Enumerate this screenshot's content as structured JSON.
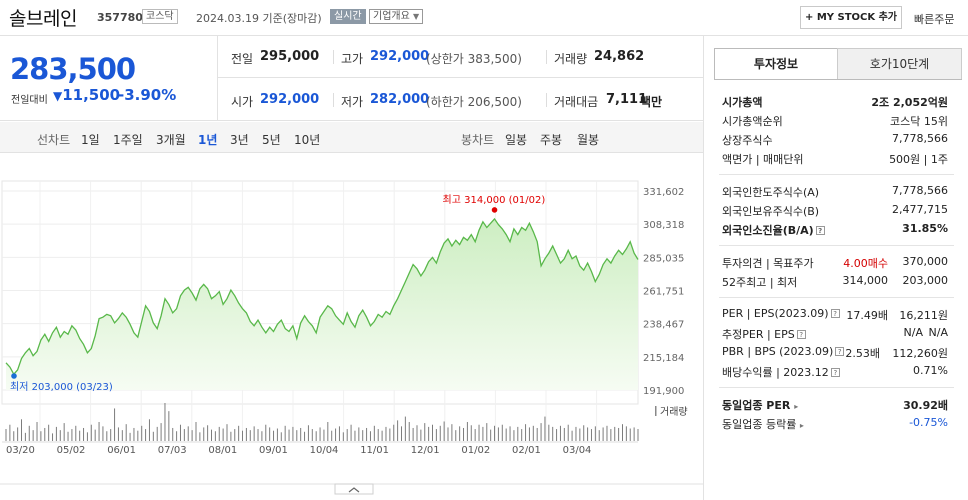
{
  "header": {
    "name": "솔브레인",
    "code": "357780",
    "market": "코스닥",
    "date": "2024.03.19  기준(장마감)",
    "realtime": "실시간",
    "company_info": "기업개요",
    "my_stock": "+ MY STOCK 추가",
    "quick_order": "빠른주문"
  },
  "price": {
    "current": "283,500",
    "vs_label": "전일대비",
    "change": "11,500",
    "change_pct": "-3.90%",
    "direction": "down"
  },
  "quotes": {
    "prev_label": "전일",
    "prev": "295,000",
    "high_label": "고가",
    "high": "292,000",
    "upper_limit": "(상한가 383,500)",
    "volume_label": "거래량",
    "volume": "24,862",
    "open_label": "시가",
    "open": "292,000",
    "low_label": "저가",
    "low": "282,000",
    "lower_limit": "(하한가 206,500)",
    "amount_label": "거래대금",
    "amount": "7,111",
    "amount_unit": "백만"
  },
  "chart_controls": {
    "line_label": "선차트",
    "line_periods": [
      "1일",
      "1주일",
      "3개월",
      "1년",
      "3년",
      "5년",
      "10년"
    ],
    "active": "1년",
    "candle_label": "봉차트",
    "candle_periods": [
      "일봉",
      "주봉",
      "월봉"
    ]
  },
  "chart_data": {
    "type": "line",
    "y_ticks": [
      "331,602",
      "308,318",
      "285,035",
      "261,751",
      "238,467",
      "215,184",
      "191,900"
    ],
    "ylim": [
      191900,
      331602
    ],
    "x_ticks": [
      "03/20",
      "05/02",
      "06/01",
      "07/03",
      "08/01",
      "09/01",
      "10/04",
      "11/01",
      "12/01",
      "01/02",
      "02/01",
      "03/04"
    ],
    "max_annotation": "최고 314,000 (01/02)",
    "min_annotation": "최저 203,000 (03/23)",
    "volume_legend": "거래량",
    "colors": {
      "line": "#59b84a",
      "fill_top": "#cdeec2",
      "fill_bottom": "#f6fcf3",
      "marker_max": "#e00000",
      "marker_min": "#1a6fd6",
      "volume": "#7c7c7c"
    },
    "series": [
      {
        "values": [
          211000,
          208000,
          203000,
          206000,
          214000,
          218000,
          221000,
          216000,
          219000,
          227000,
          231000,
          226000,
          232000,
          236000,
          229000,
          233000,
          231000,
          237000,
          234000,
          228000,
          224000,
          218000,
          221000,
          230000,
          242000,
          243000,
          245000,
          244000,
          239000,
          242000,
          246000,
          243000,
          238000,
          232000,
          229000,
          240000,
          251000,
          247000,
          239000,
          235000,
          244000,
          256000,
          252000,
          246000,
          249000,
          258000,
          262000,
          264000,
          260000,
          255000,
          263000,
          266000,
          263000,
          256000,
          258000,
          261000,
          252000,
          256000,
          262000,
          258000,
          253000,
          249000,
          246000,
          240000,
          237000,
          241000,
          236000,
          232000,
          236000,
          233000,
          238000,
          241000,
          235000,
          233000,
          237000,
          228000,
          239000,
          244000,
          240000,
          237000,
          232000,
          243000,
          247000,
          251000,
          249000,
          244000,
          241000,
          238000,
          246000,
          240000,
          236000,
          244000,
          248000,
          243000,
          237000,
          240000,
          245000,
          243000,
          247000,
          245000,
          251000,
          256000,
          262000,
          268000,
          274000,
          280000,
          277000,
          272000,
          276000,
          282000,
          285000,
          281000,
          289000,
          295000,
          298000,
          293000,
          297000,
          294000,
          299000,
          297000,
          301000,
          296000,
          304000,
          310000,
          306000,
          309000,
          312000,
          308000,
          305000,
          301000,
          296000,
          305000,
          301000,
          306000,
          304000,
          309000,
          303000,
          296000,
          279000,
          284000,
          288000,
          293000,
          287000,
          281000,
          284000,
          290000,
          284000,
          286000,
          279000,
          276000,
          281000,
          275000,
          268000,
          273000,
          280000,
          284000,
          281000,
          286000,
          290000,
          287000,
          291000,
          296000,
          288000,
          283500
        ]
      }
    ],
    "volume": [
      22,
      30,
      18,
      25,
      40,
      15,
      28,
      20,
      35,
      18,
      24,
      30,
      14,
      26,
      20,
      33,
      17,
      22,
      28,
      19,
      24,
      16,
      30,
      21,
      35,
      27,
      18,
      22,
      60,
      25,
      20,
      31,
      15,
      24,
      19,
      28,
      22,
      40,
      17,
      26,
      33,
      70,
      55,
      24,
      18,
      30,
      22,
      27,
      20,
      35,
      16,
      25,
      29,
      21,
      18,
      26,
      23,
      31,
      17,
      22,
      28,
      19,
      24,
      20,
      27,
      22,
      18,
      30,
      25,
      19,
      23,
      16,
      28,
      21,
      26,
      20,
      24,
      17,
      29,
      22,
      18,
      25,
      21,
      35,
      19,
      23,
      27,
      16,
      22,
      30,
      19,
      25,
      20,
      24,
      18,
      28,
      22,
      19,
      26,
      23,
      30,
      38,
      27,
      45,
      35,
      24,
      29,
      21,
      33,
      26,
      30,
      22,
      28,
      36,
      25,
      31,
      20,
      27,
      24,
      35,
      29,
      22,
      30,
      26,
      33,
      21,
      28,
      25,
      30,
      23,
      27,
      20,
      26,
      22,
      31,
      25,
      28,
      24,
      33,
      45,
      30,
      26,
      22,
      28,
      24,
      30,
      19,
      26,
      23,
      29,
      25,
      22,
      27,
      20,
      25,
      28,
      22,
      26,
      24,
      31,
      27,
      23,
      25,
      22
    ]
  },
  "info_panel": {
    "tab_invest": "투자정보",
    "tab_order": "호가10단계",
    "rows": [
      {
        "key": "시가총액",
        "value": "2조 2,052억원"
      },
      {
        "key": "시가총액순위",
        "value": "코스닥 15위"
      },
      {
        "key": "상장주식수",
        "value": "7,778,566"
      },
      {
        "key": "액면가 | 매매단위",
        "value": "500원 | 1주"
      },
      {
        "key": "외국인한도주식수(A)",
        "value": "7,778,566"
      },
      {
        "key": "외국인보유주식수(B)",
        "value": "2,477,715"
      },
      {
        "key": "외국인소진율(B/A)",
        "value": "31.85%"
      },
      {
        "key": "투자의견 | 목표주가",
        "value_a": "4.00매수",
        "value_b": "370,000"
      },
      {
        "key": "52주최고 | 최저",
        "value_a": "314,000",
        "value_b": "203,000"
      },
      {
        "key": "PER | EPS(2023.09)",
        "value_a": "17.49배",
        "value_b": "16,211원"
      },
      {
        "key": "추정PER | EPS",
        "value_a": "N/A",
        "value_b": "N/A"
      },
      {
        "key": "PBR | BPS (2023.09)",
        "value_a": "2.53배",
        "value_b": "112,260원"
      },
      {
        "key": "배당수익률 | 2023.12",
        "value": "0.71%"
      },
      {
        "key": "동일업종 PER",
        "value": "30.92배"
      },
      {
        "key": "동일업종 등락률",
        "value": "-0.75%"
      }
    ]
  }
}
